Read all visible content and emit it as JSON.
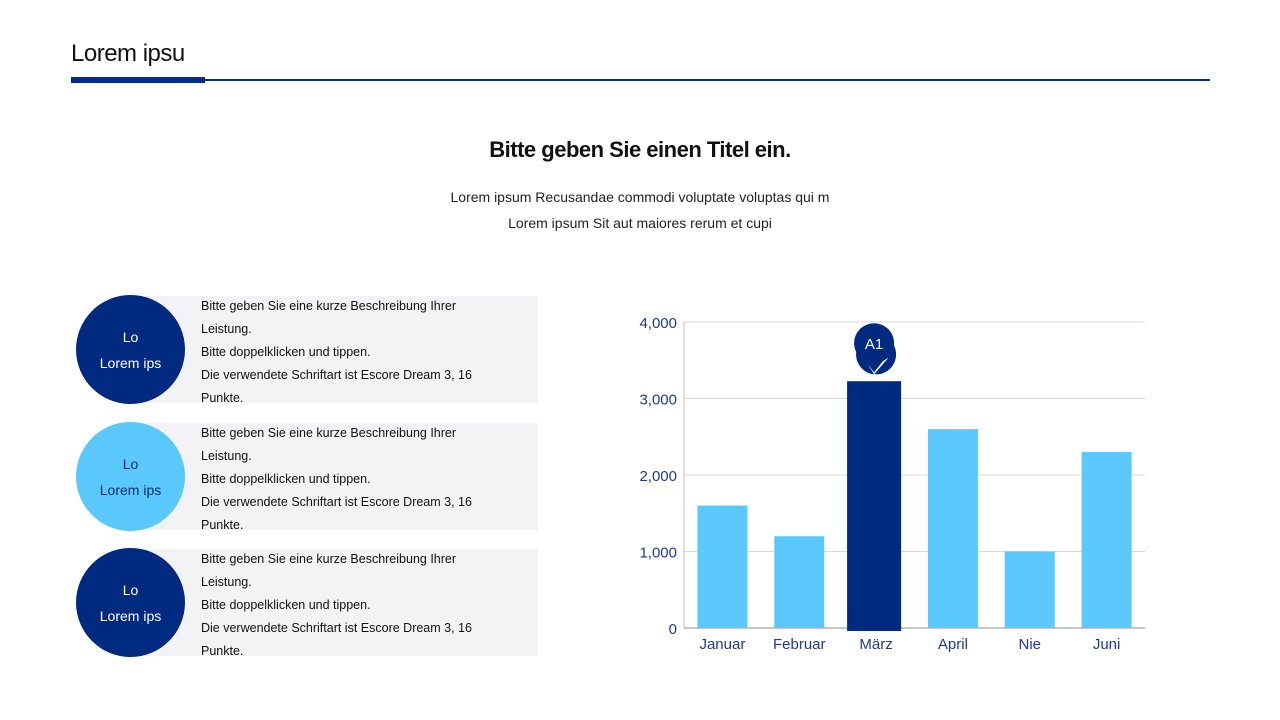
{
  "header": {
    "title": "Lorem ipsu"
  },
  "main": {
    "title": "Bitte geben Sie einen Titel ein.",
    "subtitle_lines": [
      "Lorem ipsum Recusandae commodi voluptate voluptas qui m",
      "Lorem ipsum Sit aut maiores rerum et cupi"
    ]
  },
  "items": [
    {
      "circle_line1": "Lo",
      "circle_line2": "Lorem ips",
      "circle_color": "#002a7f",
      "text_color": "#ffffff",
      "lines": [
        "Bitte geben Sie eine kurze Beschreibung Ihrer",
        "Leistung.",
        "Bitte doppelklicken und tippen.",
        "Die verwendete Schriftart ist Escore Dream 3, 16",
        "Punkte."
      ]
    },
    {
      "circle_line1": "Lo",
      "circle_line2": "Lorem ips",
      "circle_color": "#5bc8fc",
      "text_color": "#0a2a7a",
      "lines": [
        "Bitte geben Sie eine kurze Beschreibung Ihrer",
        "Leistung.",
        "Bitte doppelklicken und tippen.",
        "Die verwendete Schriftart ist Escore Dream 3, 16",
        "Punkte."
      ]
    },
    {
      "circle_line1": "Lo",
      "circle_line2": "Lorem ips",
      "circle_color": "#002a7f",
      "text_color": "#ffffff",
      "lines": [
        "Bitte geben Sie eine kurze Beschreibung Ihrer",
        "Leistung.",
        "Bitte doppelklicken und tippen.",
        "Die verwendete Schriftart ist Escore Dream 3, 16",
        "Punkte."
      ]
    }
  ],
  "chart_data": {
    "type": "bar",
    "categories": [
      "Januar",
      "Februar",
      "März",
      "April",
      "Nie",
      "Juni"
    ],
    "values": [
      1600,
      1200,
      3200,
      2600,
      1000,
      2300
    ],
    "highlight_index": 2,
    "highlight_label": "A1",
    "yticks": [
      "0",
      "1,000",
      "2,000",
      "3,000",
      "4,000"
    ],
    "ylim": [
      0,
      4000
    ],
    "grid": true,
    "colors": {
      "bar": "#5bc8fc",
      "highlight": "#002a7f",
      "axis_text": "#1e3a8a"
    }
  }
}
